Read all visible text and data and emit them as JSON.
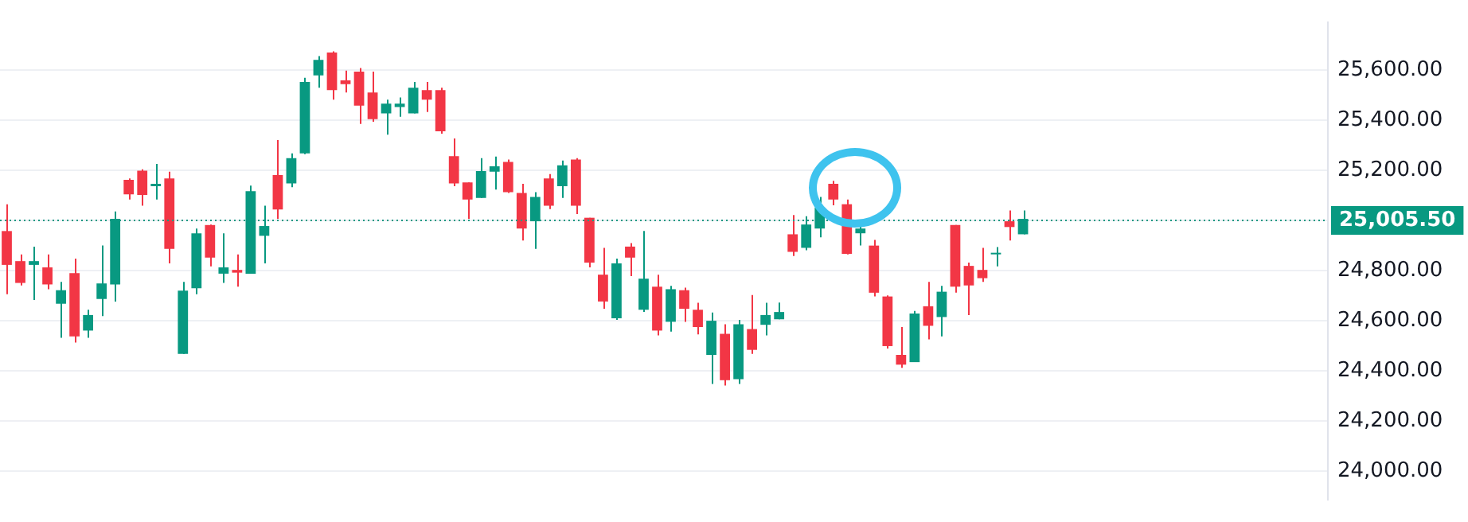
{
  "chart_data": {
    "type": "candlestick",
    "categories": [
      null,
      null,
      null,
      null,
      null,
      null,
      null,
      null,
      null,
      null,
      null,
      null,
      null,
      null,
      null,
      null,
      null,
      null,
      null,
      null,
      null,
      null,
      null,
      null,
      null,
      null,
      null,
      null,
      null,
      null,
      null,
      null,
      null,
      null,
      null,
      null,
      null,
      null,
      null,
      null,
      null,
      null,
      null,
      null,
      null,
      null,
      null,
      null,
      null,
      null,
      null,
      null,
      null,
      null,
      null,
      null,
      null,
      null,
      null,
      null,
      null,
      null,
      null,
      null,
      null,
      null,
      null,
      null,
      null,
      null,
      null,
      null,
      null,
      null,
      null,
      null,
      null,
      null,
      null,
      null,
      null,
      null,
      null,
      null,
      null,
      null,
      null,
      null,
      null,
      null,
      null,
      null,
      null,
      null,
      null,
      null,
      null,
      null
    ],
    "ohlc": [
      [
        24957,
        25064,
        24705,
        24822
      ],
      [
        24837,
        24864,
        24740,
        24750
      ],
      [
        24822,
        24895,
        24682,
        24837
      ],
      [
        24812,
        24864,
        24725,
        24744
      ],
      [
        24667,
        24754,
        24531,
        24721
      ],
      [
        24789,
        24847,
        24512,
        24537
      ],
      [
        24560,
        24643,
        24531,
        24622
      ],
      [
        24686,
        24899,
        24618,
        24748
      ],
      [
        24744,
        25035,
        24676,
        25006
      ],
      [
        25161,
        25167,
        25083,
        25103
      ],
      [
        25198,
        25203,
        25058,
        25101
      ],
      [
        25136,
        25225,
        25083,
        25145
      ],
      [
        25167,
        25194,
        24828,
        24886
      ],
      [
        24467,
        24754,
        24467,
        24719
      ],
      [
        24729,
        24967,
        24705,
        24948
      ],
      [
        24981,
        24983,
        24816,
        24851
      ],
      [
        24787,
        24948,
        24750,
        24812
      ],
      [
        24802,
        24864,
        24735,
        24791
      ],
      [
        24787,
        25138,
        24787,
        25116
      ],
      [
        24938,
        25058,
        24828,
        24977
      ],
      [
        25180,
        25320,
        25006,
        25043
      ],
      [
        25147,
        25267,
        25132,
        25248
      ],
      [
        25267,
        25568,
        25264,
        25552
      ],
      [
        25578,
        25655,
        25529,
        25640
      ],
      [
        25669,
        25674,
        25481,
        25519
      ],
      [
        25558,
        25597,
        25510,
        25543
      ],
      [
        25593,
        25607,
        25384,
        25457
      ],
      [
        25510,
        25593,
        25393,
        25403
      ],
      [
        25426,
        25481,
        25341,
        25465
      ],
      [
        25452,
        25490,
        25413,
        25465
      ],
      [
        25426,
        25552,
        25426,
        25529
      ],
      [
        25519,
        25552,
        25432,
        25481
      ],
      [
        25519,
        25529,
        25345,
        25355
      ],
      [
        25256,
        25326,
        25136,
        25147
      ],
      [
        25151,
        25151,
        25006,
        25083
      ],
      [
        25089,
        25248,
        25089,
        25196
      ],
      [
        25194,
        25254,
        25122,
        25215
      ],
      [
        25233,
        25242,
        25109,
        25112
      ],
      [
        25109,
        25145,
        24919,
        24967
      ],
      [
        24996,
        25112,
        24886,
        25093
      ],
      [
        25167,
        25184,
        25045,
        25058
      ],
      [
        25136,
        25238,
        25089,
        25219
      ],
      [
        25242,
        25248,
        25025,
        25058
      ],
      [
        25010,
        25010,
        24812,
        24831
      ],
      [
        24783,
        24890,
        24647,
        24676
      ],
      [
        24609,
        24847,
        24603,
        24828
      ],
      [
        24895,
        24909,
        24777,
        24851
      ],
      [
        24643,
        24957,
        24634,
        24767
      ],
      [
        24735,
        24783,
        24541,
        24560
      ],
      [
        24595,
        24738,
        24556,
        24725
      ],
      [
        24721,
        24731,
        24595,
        24647
      ],
      [
        24643,
        24671,
        24545,
        24574
      ],
      [
        24463,
        24632,
        24347,
        24599
      ],
      [
        24547,
        24585,
        24341,
        24362
      ],
      [
        24366,
        24603,
        24347,
        24585
      ],
      [
        24566,
        24702,
        24467,
        24483
      ],
      [
        24583,
        24671,
        24541,
        24622
      ],
      [
        24605,
        24672,
        24605,
        24634
      ],
      [
        24944,
        25021,
        24857,
        24874
      ],
      [
        24890,
        25016,
        24880,
        24983
      ],
      [
        24967,
        25093,
        24932,
        25050
      ],
      [
        25145,
        25157,
        25060,
        25083
      ],
      [
        25064,
        25083,
        24864,
        24866
      ],
      [
        24948,
        24981,
        24899,
        24967
      ],
      [
        24899,
        24922,
        24696,
        24711
      ],
      [
        24696,
        24700,
        24488,
        24498
      ],
      [
        24463,
        24574,
        24411,
        24424
      ],
      [
        24434,
        24638,
        24434,
        24628
      ],
      [
        24657,
        24754,
        24525,
        24579
      ],
      [
        24614,
        24738,
        24537,
        24715
      ],
      [
        24981,
        24981,
        24711,
        24735
      ],
      [
        24818,
        24831,
        24622,
        24740
      ],
      [
        24802,
        24890,
        24754,
        24769
      ],
      [
        24864,
        24893,
        24816,
        24870
      ],
      [
        24996,
        25039,
        24919,
        24973
      ],
      [
        24944,
        25039,
        24944,
        25005.5
      ],
      null,
      null,
      null,
      null,
      null,
      null,
      null,
      null,
      null,
      null,
      null,
      null,
      null,
      null,
      null,
      null,
      null,
      null,
      null,
      null,
      null,
      null
    ],
    "colors": [
      "#f23645",
      "#f23645",
      "#089981",
      "#f23645",
      "#089981",
      "#f23645",
      "#089981",
      "#089981",
      "#089981",
      "#f23645",
      "#f23645",
      "#089981",
      "#f23645",
      "#089981",
      "#089981",
      "#f23645",
      "#089981",
      "#f23645",
      "#089981",
      "#089981",
      "#f23645",
      "#089981",
      "#089981",
      "#089981",
      "#f23645",
      "#f23645",
      "#f23645",
      "#f23645",
      "#089981",
      "#089981",
      "#089981",
      "#f23645",
      "#f23645",
      "#f23645",
      "#f23645",
      "#089981",
      "#089981",
      "#f23645",
      "#f23645",
      "#089981",
      "#f23645",
      "#089981",
      "#f23645",
      "#f23645",
      "#f23645",
      "#089981",
      "#f23645",
      "#089981",
      "#f23645",
      "#089981",
      "#f23645",
      "#f23645",
      "#089981",
      "#f23645",
      "#089981",
      "#f23645",
      "#089981",
      "#089981",
      "#f23645",
      "#089981",
      "#089981",
      "#f23645",
      "#f23645",
      "#089981",
      "#f23645",
      "#f23645",
      "#f23645",
      "#089981",
      "#f23645",
      "#089981",
      "#f23645",
      "#f23645",
      "#f23645",
      "#089981",
      "#f23645",
      "#089981",
      null,
      null,
      null,
      null,
      null,
      null,
      null,
      null,
      null,
      null,
      null,
      null,
      null,
      null,
      null,
      null,
      null,
      null,
      null,
      null,
      null,
      null
    ],
    "ylim": [
      23884,
      25791
    ],
    "yticks": [
      {
        "value": 24000,
        "label": "24,000.00"
      },
      {
        "value": 24200,
        "label": "24,200.00"
      },
      {
        "value": 24400,
        "label": "24,400.00"
      },
      {
        "value": 24600,
        "label": "24,600.00"
      },
      {
        "value": 24800,
        "label": "24,800.00"
      },
      {
        "value": 25000,
        "label": null
      },
      {
        "value": 25200,
        "label": "25,200.00"
      },
      {
        "value": 25400,
        "label": "25,400.00"
      },
      {
        "value": 25600,
        "label": "25,600.00"
      }
    ],
    "ref_lines": [
      {
        "axis": "y",
        "value": 25005.5,
        "label": "25,005.50",
        "color": "#089981",
        "line_style": "dotted"
      }
    ],
    "grid": "y",
    "legend": false,
    "tick_labels": "y"
  }
}
